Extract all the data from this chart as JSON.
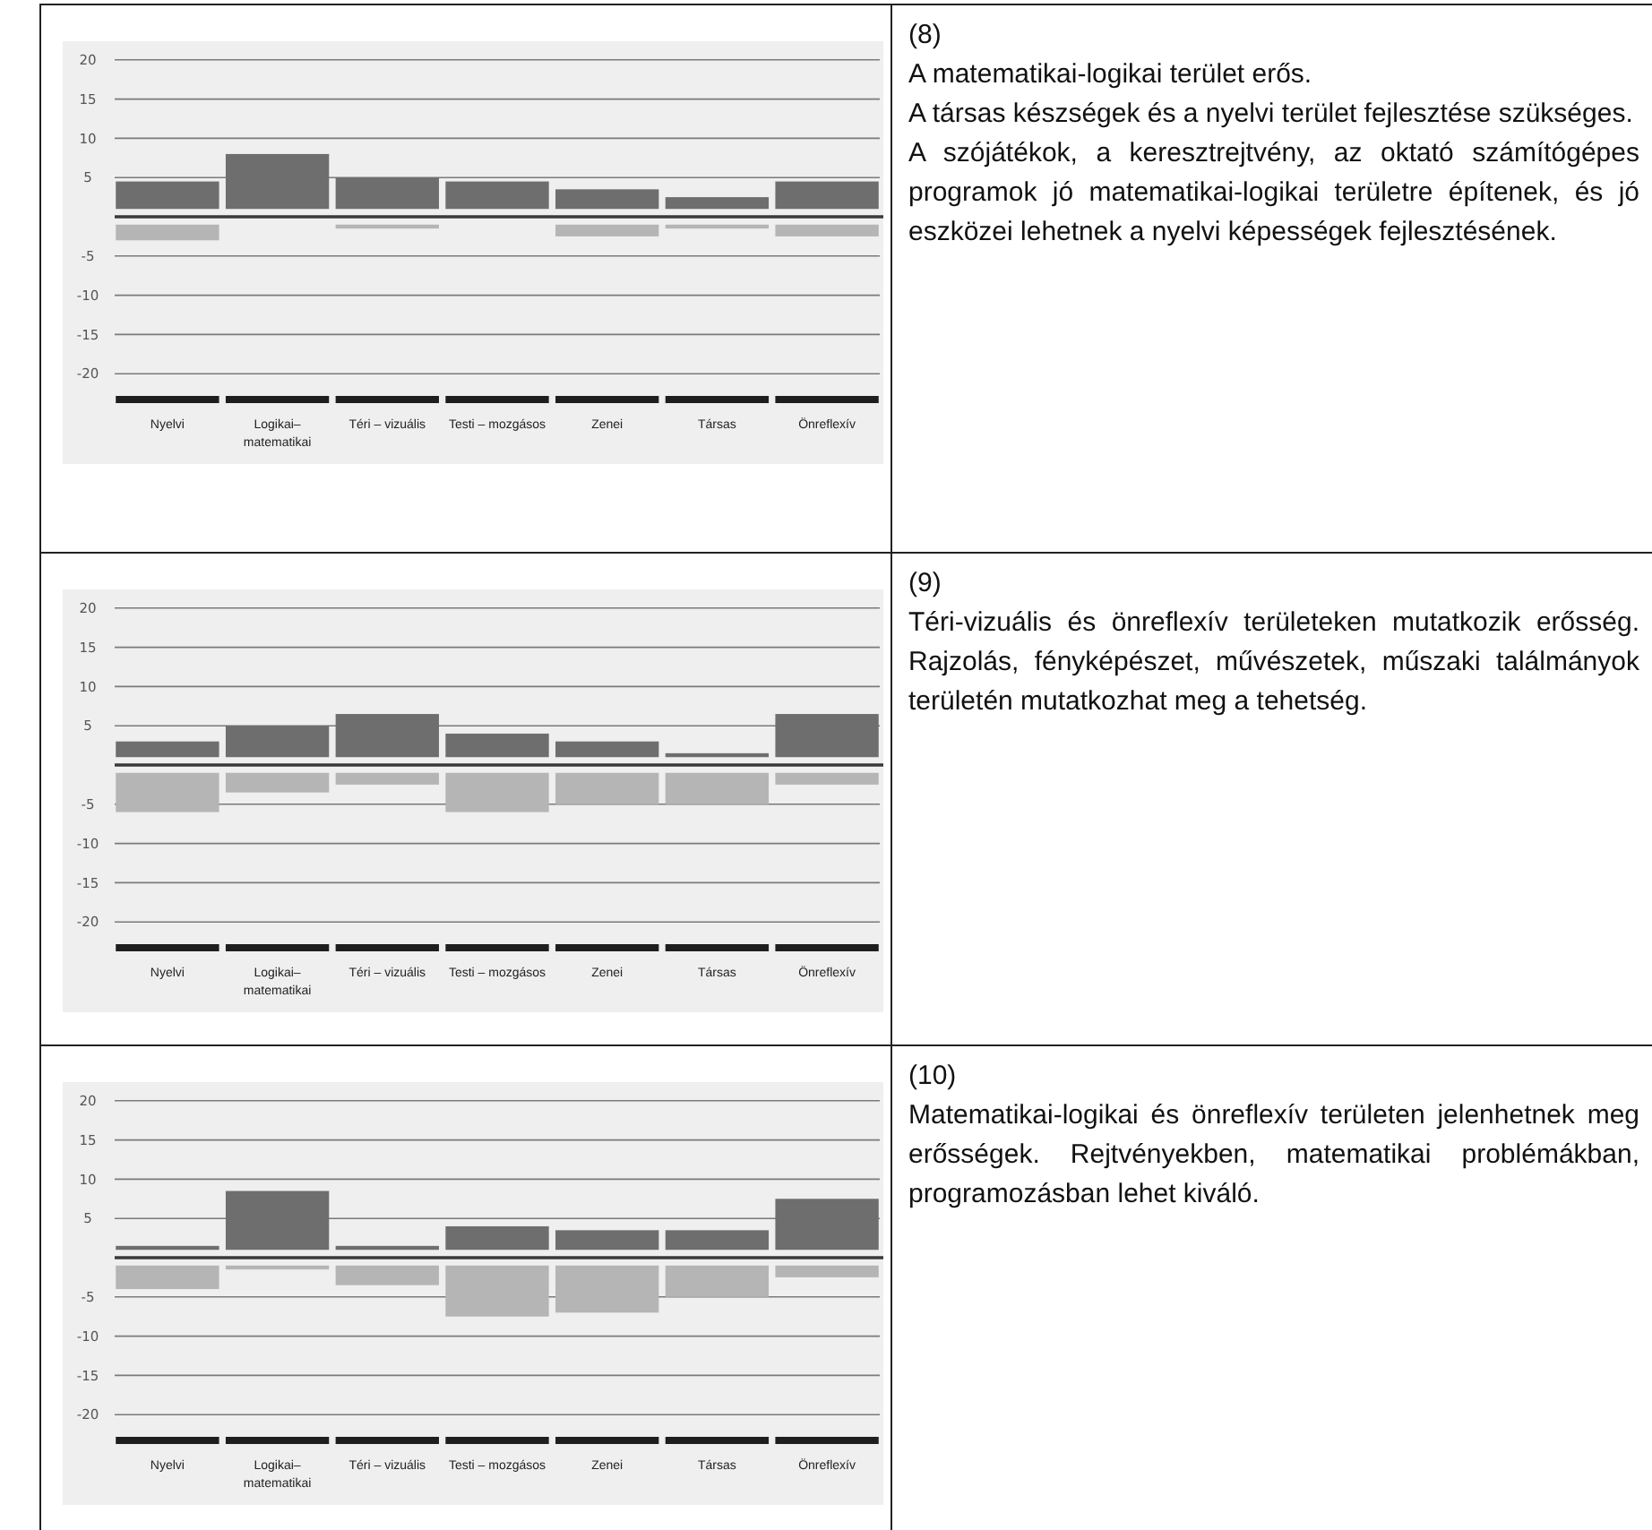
{
  "chart_data": [
    {
      "type": "bar",
      "categories": [
        "Nyelvi",
        "Logikai–matematikai",
        "Téri – vizuális",
        "Testi – mozgásos",
        "Zenei",
        "Társas",
        "Önreflexív"
      ],
      "series": [
        {
          "color": "#6e6e6e",
          "base": [
            1,
            1,
            1,
            1,
            1,
            1,
            1
          ],
          "values": [
            3.5,
            7,
            4,
            3.5,
            2.5,
            1.5,
            3.5
          ]
        },
        {
          "color": "#b5b5b5",
          "base": [
            -1,
            null,
            -1,
            null,
            -1,
            -1,
            -1
          ],
          "values": [
            -2,
            null,
            -0.5,
            null,
            -1.5,
            -0.5,
            -1.5
          ]
        }
      ],
      "ylim": [
        -20,
        20
      ],
      "yticks": [
        20,
        15,
        10,
        5,
        -5,
        -10,
        -15,
        -20
      ],
      "grid": "y",
      "ref_lines": [
        {
          "axis": "y",
          "value": 0
        }
      ],
      "annotations": [
        "(8)",
        "A matematikai-logikai terület erős.",
        "A társas készségek és a nyelvi terület fejlesztése szükséges.",
        "A szójátékok, a keresztrejtvény, az oktató számítógépes programok jó matematikai-logikai területre építenek, és jó eszközei lehetnek a nyelvi képességek fejlesztésének."
      ]
    },
    {
      "type": "bar",
      "categories": [
        "Nyelvi",
        "Logikai–matematikai",
        "Téri – vizuális",
        "Testi – mozgásos",
        "Zenei",
        "Társas",
        "Önreflexív"
      ],
      "series": [
        {
          "color": "#6e6e6e",
          "base": [
            1,
            1,
            1,
            1,
            1,
            1,
            1
          ],
          "values": [
            2,
            4,
            5.5,
            3,
            2,
            0.5,
            5.5
          ]
        },
        {
          "color": "#b5b5b5",
          "base": [
            -1,
            -1,
            -1,
            -1,
            -1,
            -1,
            -1
          ],
          "values": [
            -5,
            -2.5,
            -1.5,
            -5,
            -4,
            -4,
            -1.5
          ]
        }
      ],
      "ylim": [
        -20,
        20
      ],
      "yticks": [
        20,
        15,
        10,
        5,
        -5,
        -10,
        -15,
        -20
      ],
      "grid": "y",
      "ref_lines": [
        {
          "axis": "y",
          "value": 0
        }
      ],
      "annotations": [
        "(9)",
        "Téri-vizuális és önreflexív területeken mutatkozik erősség. Rajzolás, fényképészet, művészetek, műszaki találmányok területén mutatkozhat meg a tehetség."
      ]
    },
    {
      "type": "bar",
      "categories": [
        "Nyelvi",
        "Logikai–matematikai",
        "Téri – vizuális",
        "Testi – mozgásos",
        "Zenei",
        "Társas",
        "Önreflexív"
      ],
      "series": [
        {
          "color": "#6e6e6e",
          "base": [
            1,
            1,
            1,
            1,
            1,
            1,
            1
          ],
          "values": [
            0.5,
            7.5,
            0.5,
            3,
            2.5,
            2.5,
            6.5
          ]
        },
        {
          "color": "#b5b5b5",
          "base": [
            -1,
            -1,
            -1,
            -1,
            -1,
            -1,
            -1
          ],
          "values": [
            -3,
            -0.5,
            -2.5,
            -6.5,
            -6,
            -4,
            -1.5
          ]
        }
      ],
      "ylim": [
        -20,
        20
      ],
      "yticks": [
        20,
        15,
        10,
        5,
        -5,
        -10,
        -15,
        -20
      ],
      "grid": "y",
      "ref_lines": [
        {
          "axis": "y",
          "value": 0
        }
      ],
      "annotations": [
        "(10)",
        "Matematikai-logikai és önreflexív területen jelenhetnek meg erősségek. Rejtvényekben, matematikai problémákban, programozásban lehet kiváló."
      ]
    }
  ]
}
